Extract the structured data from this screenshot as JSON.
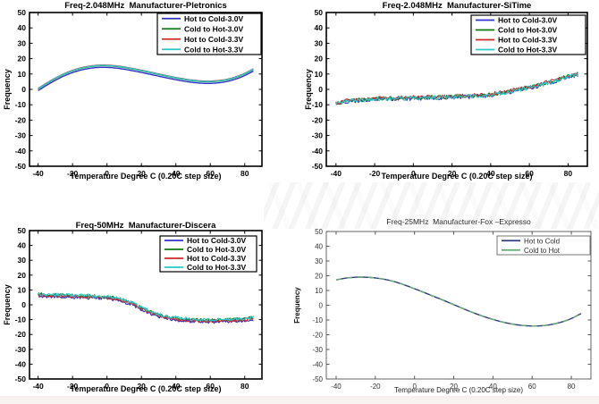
{
  "page": {
    "background": "#ffffff",
    "description_labels": {
      "frequency_axis": "Frequency",
      "temperature_axis": "Temperature Degree C (0.20C step size)"
    }
  },
  "chart_data": [
    {
      "type": "line",
      "title": "Freq-2.048MHz  Manufacturer-Pletronics",
      "xlabel": "Temperature Degree C (0.20C step size)",
      "ylabel": "Frequency",
      "xlim": [
        -45,
        90
      ],
      "ylim": [
        -50,
        50
      ],
      "xticks": [
        -40,
        -20,
        0,
        20,
        40,
        60,
        80
      ],
      "yticks": [
        -50,
        -40,
        -30,
        -20,
        -10,
        0,
        10,
        20,
        30,
        40,
        50
      ],
      "grid": false,
      "legend_position": "upper right",
      "noise": 0,
      "x": [
        -40,
        -35,
        -30,
        -25,
        -20,
        -15,
        -10,
        -5,
        0,
        5,
        10,
        15,
        20,
        25,
        30,
        35,
        40,
        45,
        50,
        55,
        60,
        65,
        70,
        75,
        80,
        85
      ],
      "y": [
        0.3,
        3.8,
        7.0,
        9.8,
        12.0,
        13.7,
        14.8,
        15.4,
        15.4,
        15.0,
        14.2,
        13.2,
        12.1,
        10.9,
        9.7,
        8.5,
        7.4,
        6.4,
        5.6,
        5.1,
        5.0,
        5.4,
        6.3,
        7.9,
        10.1,
        13.0
      ],
      "series": [
        {
          "name": "Hot to Cold-3.0V",
          "color": "#3333cc",
          "offset": -1.1
        },
        {
          "name": "Cold to Hot-3.0V",
          "color": "#117711",
          "offset": 0
        },
        {
          "name": "Hot to Cold-3.3V",
          "color": "#cc2a2a",
          "offset": 0.35
        },
        {
          "name": "Cold to Hot-3.3V",
          "color": "#2cc8c8",
          "offset": 0.15
        }
      ]
    },
    {
      "type": "line",
      "title": "Freq-2.048MHz  Manufacturer-SiTime",
      "xlabel": "Temperature Degree C (0.20C step size)",
      "ylabel": "Frequency",
      "xlim": [
        -45,
        90
      ],
      "ylim": [
        -50,
        50
      ],
      "xticks": [
        -40,
        -20,
        0,
        20,
        40,
        60,
        80
      ],
      "yticks": [
        -50,
        -40,
        -30,
        -20,
        -10,
        0,
        10,
        20,
        30,
        40,
        50
      ],
      "grid": false,
      "legend_position": "upper right",
      "noise": 1.3,
      "x": [
        -40,
        -35,
        -30,
        -25,
        -20,
        -15,
        -10,
        -5,
        0,
        5,
        10,
        15,
        20,
        25,
        30,
        35,
        40,
        45,
        50,
        55,
        60,
        65,
        70,
        75,
        80,
        85
      ],
      "y": [
        -9.5,
        -7.8,
        -7.2,
        -6.8,
        -6.3,
        -6.1,
        -6.0,
        -5.8,
        -5.6,
        -5.5,
        -5.3,
        -5.2,
        -5.0,
        -4.7,
        -4.4,
        -4.0,
        -3.4,
        -2.5,
        -1.4,
        -0.2,
        1.2,
        2.8,
        4.5,
        6.3,
        8.2,
        9.8
      ],
      "series": [
        {
          "name": "Hot to Cold-3.0V",
          "color": "#3333cc",
          "offset": -0.3
        },
        {
          "name": "Cold to Hot-3.0V",
          "color": "#117711",
          "offset": 0.2
        },
        {
          "name": "Hot to Cold-3.3V",
          "color": "#cc2a2a",
          "offset": 0.4
        },
        {
          "name": "Cold to Hot-3.3V",
          "color": "#2cc8c8",
          "offset": 0
        }
      ]
    },
    {
      "type": "line",
      "title": "Freq-50MHz  Manufacturer-Discera",
      "xlabel": "Temperature Degree C (0.20C step size)",
      "ylabel": "Frequency",
      "xlim": [
        -45,
        90
      ],
      "ylim": [
        -50,
        50
      ],
      "xticks": [
        -40,
        -20,
        0,
        20,
        40,
        60,
        80
      ],
      "yticks": [
        -50,
        -40,
        -30,
        -20,
        -10,
        0,
        10,
        20,
        30,
        40,
        50
      ],
      "grid": false,
      "legend_position": "upper right",
      "noise": 1.0,
      "x": [
        -40,
        -35,
        -30,
        -25,
        -20,
        -15,
        -10,
        -5,
        0,
        5,
        10,
        15,
        20,
        25,
        30,
        35,
        40,
        45,
        50,
        55,
        60,
        65,
        70,
        75,
        80,
        85
      ],
      "y": [
        6.8,
        6.6,
        6.4,
        6.2,
        6.0,
        5.9,
        5.7,
        5.4,
        5.0,
        4.3,
        2.8,
        0.6,
        -2.2,
        -4.8,
        -6.8,
        -8.2,
        -9.2,
        -9.9,
        -10.3,
        -10.5,
        -10.6,
        -10.5,
        -10.3,
        -10.1,
        -9.8,
        -8.8
      ],
      "series": [
        {
          "name": "Hot to Cold-3.0V",
          "color": "#3333cc",
          "offset": -1.0
        },
        {
          "name": "Cold to Hot-3.0V",
          "color": "#117711",
          "offset": 0.3
        },
        {
          "name": "Hot to Cold-3.3V",
          "color": "#cc2a2a",
          "offset": -0.4
        },
        {
          "name": "Cold to Hot-3.3V",
          "color": "#2cc8c8",
          "offset": 0.5
        }
      ]
    },
    {
      "type": "line",
      "title": "Freq-25MHz  Manufacturer-Fox –Expresso",
      "xlabel": "Temperature Degree C (0.20C step size)",
      "ylabel": "Frequency",
      "xlim": [
        -45,
        90
      ],
      "ylim": [
        -50,
        50
      ],
      "xticks": [
        -40,
        -20,
        0,
        20,
        40,
        60,
        80
      ],
      "yticks": [
        -50,
        -40,
        -30,
        -20,
        -10,
        0,
        10,
        20,
        30,
        40,
        50
      ],
      "grid": false,
      "legend_position": "upper right",
      "noise": 0,
      "x": [
        -40,
        -35,
        -30,
        -25,
        -20,
        -15,
        -10,
        -5,
        0,
        5,
        10,
        15,
        20,
        25,
        30,
        35,
        40,
        45,
        50,
        55,
        60,
        65,
        70,
        75,
        80,
        85
      ],
      "y": [
        17.2,
        18.4,
        19.0,
        19.0,
        18.5,
        17.5,
        15.9,
        13.7,
        11.2,
        8.6,
        5.9,
        3.2,
        0.4,
        -2.4,
        -5.1,
        -7.5,
        -9.6,
        -11.4,
        -12.8,
        -13.7,
        -14.1,
        -13.9,
        -13.0,
        -11.4,
        -9.0,
        -5.6
      ],
      "series": [
        {
          "name": "Hot to Cold",
          "color": "#333a80",
          "offset": 0,
          "width": 1.4
        },
        {
          "name": "Cold to Hot",
          "color": "#62aa72",
          "offset": 0,
          "width": 1.5,
          "dash": "6 6"
        }
      ]
    }
  ]
}
